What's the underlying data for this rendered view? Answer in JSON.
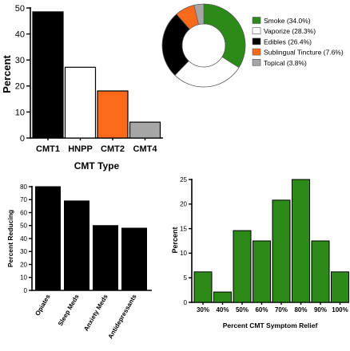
{
  "chart_data": [
    {
      "id": "cmt",
      "type": "bar",
      "categories": [
        "CMT1",
        "HNPP",
        "CMT2",
        "CMT4"
      ],
      "values": [
        48.5,
        27.2,
        18.1,
        6.1
      ],
      "colors": [
        "#000000",
        "#ffffff",
        "#fb6a1b",
        "#a6a6a6"
      ],
      "xlabel": "CMT Type",
      "ylabel": "Percent",
      "ylim": [
        0,
        50
      ],
      "yticks": [
        0,
        10,
        20,
        30,
        40,
        50
      ],
      "grid": false
    },
    {
      "id": "consumption",
      "type": "pie",
      "donut": true,
      "labels": [
        "Smoke (34.0%)",
        "Vaporize (28.3%)",
        "Edibles (26.4%)",
        "Sublingual Tincture (7.6%)",
        "Topical (3.8%)"
      ],
      "values": [
        34.0,
        28.3,
        26.4,
        7.6,
        3.8
      ],
      "colors": [
        "#2c8a18",
        "#ffffff",
        "#000000",
        "#fb6a1b",
        "#a6a6a6"
      ],
      "legend_position": "right"
    },
    {
      "id": "meds",
      "type": "bar",
      "categories": [
        "Opiates",
        "Sleep Meds",
        "Anxiety Meds",
        "Antidepressants"
      ],
      "values": [
        80,
        69,
        50,
        48
      ],
      "colors": [
        "#000000",
        "#000000",
        "#000000",
        "#000000"
      ],
      "xlabel": "",
      "ylabel": "Percent Reducing",
      "ylim": [
        0,
        80
      ],
      "yticks": [
        0,
        10,
        20,
        30,
        40,
        50,
        60,
        70,
        80
      ],
      "grid": false
    },
    {
      "id": "relief",
      "type": "bar",
      "categories": [
        "30%",
        "40%",
        "50%",
        "60%",
        "70%",
        "80%",
        "90%",
        "100%"
      ],
      "values": [
        6.2,
        2.1,
        14.6,
        12.5,
        20.8,
        25.0,
        12.5,
        6.2
      ],
      "colors": [
        "#2c8a18",
        "#2c8a18",
        "#2c8a18",
        "#2c8a18",
        "#2c8a18",
        "#2c8a18",
        "#2c8a18",
        "#2c8a18"
      ],
      "xlabel": "Percent CMT Symptom Relief",
      "ylabel": "Percent",
      "ylim": [
        0,
        25
      ],
      "yticks": [
        0,
        5,
        10,
        15,
        20,
        25
      ],
      "grid": false
    }
  ]
}
